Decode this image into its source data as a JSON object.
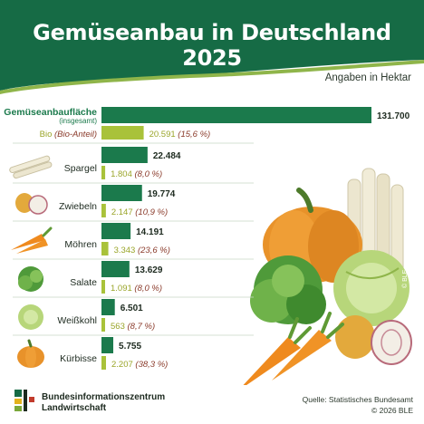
{
  "title": "Gemüseanbau in Deutschland 2025",
  "unit_label": "Angaben in Hektar",
  "footer": {
    "org_line1": "Bundesinformationszentrum",
    "org_line2": "Landwirtschaft",
    "source": "Quelle: Statistisches Bundesamt",
    "copyright": "© 2026 BLE",
    "watermark": "© BLE"
  },
  "colors": {
    "header_green": "#166b45",
    "bar_total": "#1b7a4c",
    "bar_bio": "#a9c23a",
    "total_label": "#1b7a4c",
    "bio_label": "#9aa529",
    "bio_pct": "#8a3a2a",
    "divider": "#c7d9c4"
  },
  "chart_data": {
    "type": "bar",
    "orientation": "horizontal",
    "xlim": [
      0,
      131700
    ],
    "categories": [
      {
        "label": "Gemüseanbaufläche",
        "sublabel": "(insgesamt)",
        "bio_label": "Bio",
        "bio_sublabel": "(Bio-Anteil)",
        "icon": "",
        "total": 131700,
        "total_text": "131.700",
        "bio": 20591,
        "bio_text": "20.591",
        "bio_share": "(15,6 %)"
      },
      {
        "label": "Spargel",
        "icon": "asparagus-icon",
        "total": 22484,
        "total_text": "22.484",
        "bio": 1804,
        "bio_text": "1.804",
        "bio_share": "(8,0 %)"
      },
      {
        "label": "Zwiebeln",
        "icon": "onion-icon",
        "total": 19774,
        "total_text": "19.774",
        "bio": 2147,
        "bio_text": "2.147",
        "bio_share": "(10,9 %)"
      },
      {
        "label": "Möhren",
        "icon": "carrot-icon",
        "total": 14191,
        "total_text": "14.191",
        "bio": 3343,
        "bio_text": "3.343",
        "bio_share": "(23,6 %)"
      },
      {
        "label": "Salate",
        "icon": "lettuce-icon",
        "total": 13629,
        "total_text": "13.629",
        "bio": 1091,
        "bio_text": "1.091",
        "bio_share": "(8,0 %)"
      },
      {
        "label": "Weißkohl",
        "icon": "cabbage-icon",
        "total": 6501,
        "total_text": "6.501",
        "bio": 563,
        "bio_text": "563",
        "bio_share": "(8,7 %)"
      },
      {
        "label": "Kürbisse",
        "icon": "pumpkin-icon",
        "total": 5755,
        "total_text": "5.755",
        "bio": 2207,
        "bio_text": "2.207",
        "bio_share": "(38,3 %)"
      }
    ]
  }
}
